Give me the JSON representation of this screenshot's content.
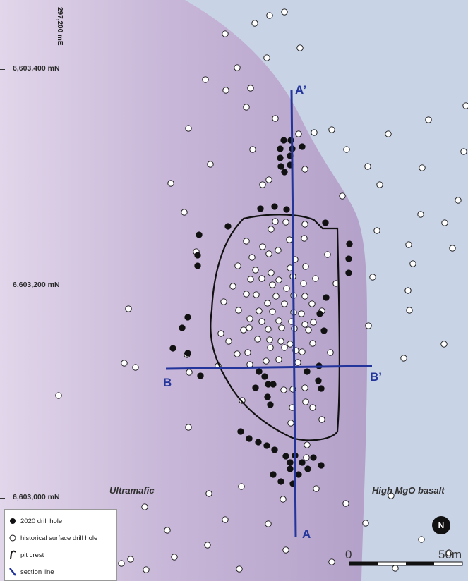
{
  "map": {
    "coordinates": {
      "easting_label": "297,200 mE",
      "northings": [
        "6,603,400 mN",
        "6,603,200 mN",
        "6,603,000 mN"
      ]
    },
    "geology": {
      "units": [
        {
          "name": "Ultramafic",
          "color": "#b8a6cc"
        },
        {
          "name": "High MgO basalt",
          "color": "#c9d3e6"
        }
      ]
    },
    "section_lines": [
      {
        "start": "A",
        "end": "A’"
      },
      {
        "start": "B",
        "end": "B’"
      }
    ],
    "legend": {
      "items": [
        {
          "symbol": "filled-circle",
          "label": "2020 drill hole"
        },
        {
          "symbol": "open-circle",
          "label": "historical surface drill hole"
        },
        {
          "symbol": "black-line",
          "label": "pit crest"
        },
        {
          "symbol": "blue-line",
          "label": "section line"
        }
      ]
    },
    "scale_bar": {
      "start_label": "0",
      "end_label": "50m"
    },
    "north_arrow": {
      "label": "N"
    },
    "colors": {
      "section_line": "#23359a",
      "pit_crest": "#111111",
      "drill_2020": "#111111",
      "historical_hole": "#ffffff"
    }
  }
}
